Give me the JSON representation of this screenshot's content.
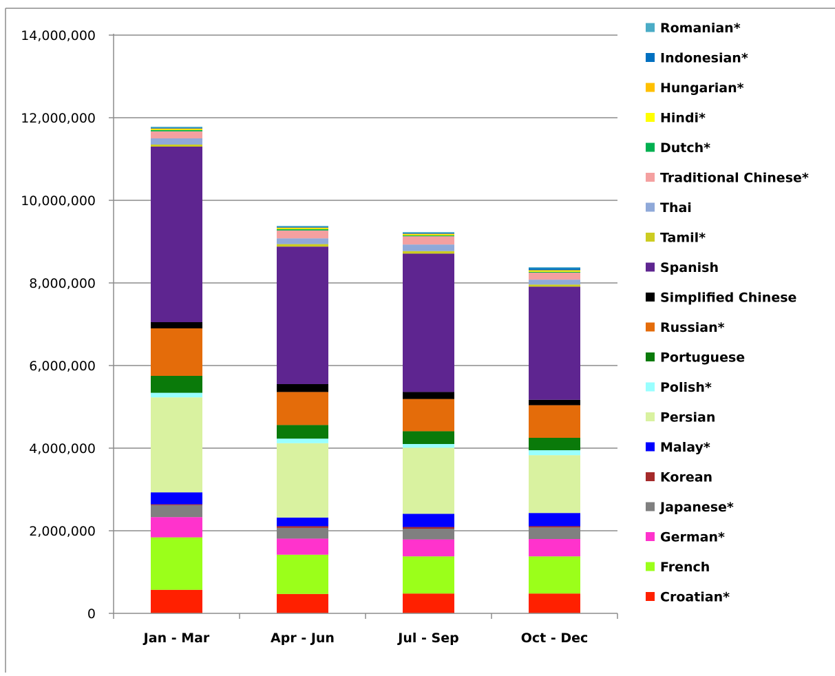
{
  "chart_data": {
    "type": "bar",
    "stacked": true,
    "title": "",
    "xlabel": "",
    "ylabel": "",
    "ylim": [
      0,
      14000000
    ],
    "yticks": [
      0,
      2000000,
      4000000,
      6000000,
      8000000,
      10000000,
      12000000,
      14000000
    ],
    "ytick_labels": [
      "0",
      "2,000,000",
      "4,000,000",
      "6,000,000",
      "8,000,000",
      "10,000,000",
      "12,000,000",
      "14,000,000"
    ],
    "grid": true,
    "legend_position": "right",
    "categories": [
      "Jan - Mar",
      "Apr - Jun",
      "Jul - Sep",
      "Oct - Dec"
    ],
    "series": [
      {
        "name": "Croatian*",
        "color": "#ff2000",
        "values": [
          570000,
          470000,
          480000,
          480000
        ]
      },
      {
        "name": "French",
        "color": "#9bff1a",
        "values": [
          1270000,
          950000,
          900000,
          900000
        ]
      },
      {
        "name": "German*",
        "color": "#ff33cc",
        "values": [
          490000,
          390000,
          410000,
          420000
        ]
      },
      {
        "name": "Japanese*",
        "color": "#808080",
        "values": [
          290000,
          260000,
          260000,
          280000
        ]
      },
      {
        "name": "Korean",
        "color": "#a52a2a",
        "values": [
          20000,
          40000,
          40000,
          30000
        ]
      },
      {
        "name": "Malay*",
        "color": "#0000ff",
        "values": [
          290000,
          210000,
          320000,
          320000
        ]
      },
      {
        "name": "Persian",
        "color": "#d9f2a0",
        "values": [
          2300000,
          1800000,
          1600000,
          1400000
        ]
      },
      {
        "name": "Polish*",
        "color": "#99ffff",
        "values": [
          110000,
          110000,
          90000,
          120000
        ]
      },
      {
        "name": "Portuguese",
        "color": "#0a7a0a",
        "values": [
          410000,
          330000,
          310000,
          300000
        ]
      },
      {
        "name": "Russian*",
        "color": "#e46c0a",
        "values": [
          1150000,
          800000,
          780000,
          790000
        ]
      },
      {
        "name": "Simplified Chinese",
        "color": "#000000",
        "values": [
          150000,
          190000,
          170000,
          130000
        ]
      },
      {
        "name": "Spanish",
        "color": "#5e2590",
        "values": [
          4250000,
          3330000,
          3350000,
          2740000
        ]
      },
      {
        "name": "Tamil*",
        "color": "#cccc22",
        "values": [
          50000,
          60000,
          60000,
          50000
        ]
      },
      {
        "name": "Thai",
        "color": "#8fa9d9",
        "values": [
          150000,
          140000,
          160000,
          120000
        ]
      },
      {
        "name": "Traditional Chinese*",
        "color": "#f4a0a0",
        "values": [
          170000,
          190000,
          200000,
          170000
        ]
      },
      {
        "name": "Dutch*",
        "color": "#00b050",
        "values": [
          30000,
          30000,
          20000,
          20000
        ]
      },
      {
        "name": "Hindi*",
        "color": "#ffff00",
        "values": [
          20000,
          20000,
          20000,
          20000
        ]
      },
      {
        "name": "Hungarian*",
        "color": "#ffc000",
        "values": [
          20000,
          20000,
          20000,
          20000
        ]
      },
      {
        "name": "Indonesian*",
        "color": "#0070c0",
        "values": [
          20000,
          20000,
          20000,
          50000
        ]
      },
      {
        "name": "Romanian*",
        "color": "#4bacc6",
        "values": [
          20000,
          20000,
          20000,
          20000
        ]
      }
    ]
  }
}
